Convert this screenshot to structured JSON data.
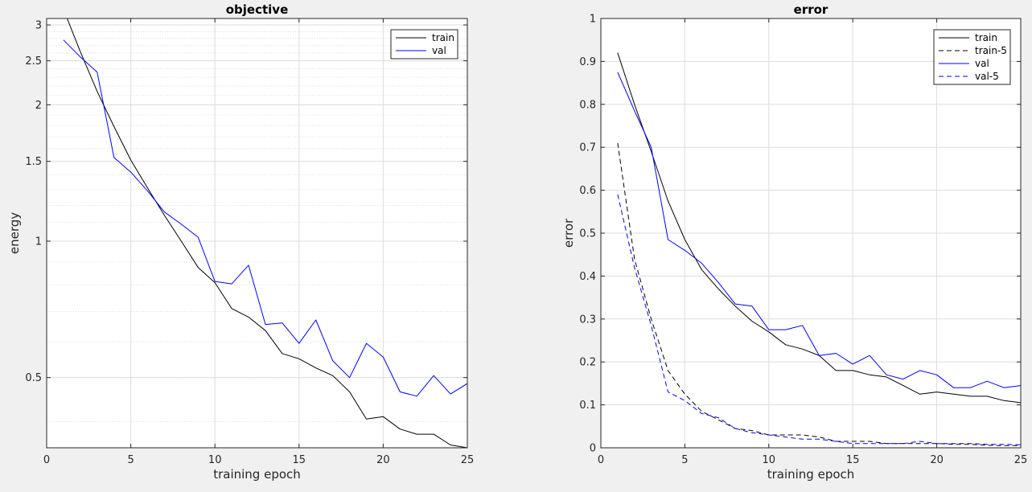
{
  "chart_data": [
    {
      "type": "line",
      "title": "objective",
      "xlabel": "training epoch",
      "ylabel": "energy",
      "xlim": [
        0,
        25
      ],
      "ylim": [
        0.35,
        3.1
      ],
      "yscale": "log",
      "grid": true,
      "minor_grid": true,
      "legend_position": "top-right",
      "x_ticks": [
        0,
        5,
        10,
        15,
        20,
        25
      ],
      "x_tick_labels": [
        "0",
        "5",
        "10",
        "15",
        "20",
        "25"
      ],
      "y_ticks": [
        0.5,
        1,
        1.5,
        2,
        2.5,
        3
      ],
      "y_tick_labels": [
        "0.5",
        "1",
        "1.5",
        "2",
        "2.5",
        "3"
      ],
      "y_minor_ticks": [
        0.4,
        0.5,
        0.6,
        0.7,
        0.8,
        0.9,
        1.0,
        1.1,
        1.2,
        1.3,
        1.4,
        1.5,
        1.6,
        1.7,
        1.8,
        1.9,
        2.0,
        2.1,
        2.2,
        2.3,
        2.4,
        2.5,
        2.6,
        2.7,
        2.8,
        2.9,
        3.0
      ],
      "x": [
        1,
        2,
        3,
        4,
        5,
        6,
        7,
        8,
        9,
        10,
        11,
        12,
        13,
        14,
        15,
        16,
        17,
        18,
        19,
        20,
        21,
        22,
        23,
        24,
        25
      ],
      "series": [
        {
          "name": "train",
          "color": "#000000",
          "dash": "solid",
          "values": [
            3.25,
            2.62,
            2.14,
            1.79,
            1.51,
            1.31,
            1.14,
            1.0,
            0.875,
            0.81,
            0.71,
            0.68,
            0.635,
            0.565,
            0.55,
            0.525,
            0.505,
            0.465,
            0.405,
            0.41,
            0.385,
            0.375,
            0.375,
            0.355,
            0.35
          ]
        },
        {
          "name": "val",
          "color": "#0000ff",
          "dash": "solid",
          "values": [
            2.78,
            2.55,
            2.36,
            1.53,
            1.42,
            1.29,
            1.16,
            1.09,
            1.02,
            0.815,
            0.805,
            0.885,
            0.655,
            0.66,
            0.595,
            0.67,
            0.545,
            0.5,
            0.595,
            0.555,
            0.465,
            0.455,
            0.505,
            0.46,
            0.485
          ]
        }
      ]
    },
    {
      "type": "line",
      "title": "error",
      "xlabel": "training epoch",
      "ylabel": "error",
      "xlim": [
        0,
        25
      ],
      "ylim": [
        0,
        1
      ],
      "yscale": "linear",
      "grid": true,
      "legend_position": "top-right",
      "x_ticks": [
        0,
        5,
        10,
        15,
        20,
        25
      ],
      "x_tick_labels": [
        "0",
        "5",
        "10",
        "15",
        "20",
        "25"
      ],
      "y_ticks": [
        0,
        0.1,
        0.2,
        0.3,
        0.4,
        0.5,
        0.6,
        0.7,
        0.8,
        0.9,
        1
      ],
      "y_tick_labels": [
        "0",
        "0.1",
        "0.2",
        "0.3",
        "0.4",
        "0.5",
        "0.6",
        "0.7",
        "0.8",
        "0.9",
        "1"
      ],
      "x": [
        1,
        2,
        3,
        4,
        5,
        6,
        7,
        8,
        9,
        10,
        11,
        12,
        13,
        14,
        15,
        16,
        17,
        18,
        19,
        20,
        21,
        22,
        23,
        24,
        25
      ],
      "series": [
        {
          "name": "train",
          "color": "#000000",
          "dash": "solid",
          "values": [
            0.92,
            0.8,
            0.69,
            0.575,
            0.485,
            0.415,
            0.37,
            0.33,
            0.295,
            0.27,
            0.24,
            0.23,
            0.215,
            0.18,
            0.18,
            0.17,
            0.165,
            0.145,
            0.125,
            0.13,
            0.125,
            0.12,
            0.12,
            0.11,
            0.105
          ]
        },
        {
          "name": "train-5",
          "color": "#000000",
          "dash": "dashed",
          "values": [
            0.71,
            0.44,
            0.3,
            0.18,
            0.125,
            0.085,
            0.065,
            0.045,
            0.04,
            0.03,
            0.03,
            0.03,
            0.025,
            0.015,
            0.015,
            0.015,
            0.01,
            0.01,
            0.01,
            0.01,
            0.008,
            0.008,
            0.006,
            0.005,
            0.005
          ]
        },
        {
          "name": "val",
          "color": "#0000ff",
          "dash": "solid",
          "values": [
            0.875,
            0.785,
            0.7,
            0.485,
            0.46,
            0.43,
            0.385,
            0.335,
            0.33,
            0.275,
            0.275,
            0.285,
            0.215,
            0.22,
            0.195,
            0.215,
            0.17,
            0.16,
            0.18,
            0.17,
            0.14,
            0.14,
            0.155,
            0.14,
            0.145
          ]
        },
        {
          "name": "val-5",
          "color": "#0000ff",
          "dash": "dashed",
          "values": [
            0.59,
            0.42,
            0.285,
            0.13,
            0.11,
            0.08,
            0.07,
            0.045,
            0.035,
            0.03,
            0.025,
            0.02,
            0.02,
            0.015,
            0.01,
            0.01,
            0.01,
            0.01,
            0.015,
            0.01,
            0.01,
            0.01,
            0.008,
            0.008,
            0.007
          ]
        }
      ]
    }
  ]
}
